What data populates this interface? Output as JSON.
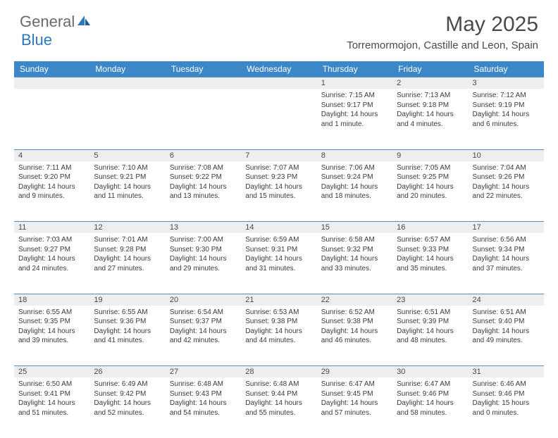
{
  "brand": {
    "part1": "General",
    "part2": "Blue"
  },
  "title": "May 2025",
  "location": "Torremormojon, Castille and Leon, Spain",
  "header_bg": "#3b87c8",
  "header_text": "#ffffff",
  "daynum_bg": "#eeeeee",
  "border_color": "#5a8fbc",
  "weekdays": [
    "Sunday",
    "Monday",
    "Tuesday",
    "Wednesday",
    "Thursday",
    "Friday",
    "Saturday"
  ],
  "weeks": [
    {
      "nums": [
        "",
        "",
        "",
        "",
        "1",
        "2",
        "3"
      ],
      "cells": [
        null,
        null,
        null,
        null,
        {
          "sr": "Sunrise: 7:15 AM",
          "ss": "Sunset: 9:17 PM",
          "d1": "Daylight: 14 hours",
          "d2": "and 1 minute."
        },
        {
          "sr": "Sunrise: 7:13 AM",
          "ss": "Sunset: 9:18 PM",
          "d1": "Daylight: 14 hours",
          "d2": "and 4 minutes."
        },
        {
          "sr": "Sunrise: 7:12 AM",
          "ss": "Sunset: 9:19 PM",
          "d1": "Daylight: 14 hours",
          "d2": "and 6 minutes."
        }
      ]
    },
    {
      "nums": [
        "4",
        "5",
        "6",
        "7",
        "8",
        "9",
        "10"
      ],
      "cells": [
        {
          "sr": "Sunrise: 7:11 AM",
          "ss": "Sunset: 9:20 PM",
          "d1": "Daylight: 14 hours",
          "d2": "and 9 minutes."
        },
        {
          "sr": "Sunrise: 7:10 AM",
          "ss": "Sunset: 9:21 PM",
          "d1": "Daylight: 14 hours",
          "d2": "and 11 minutes."
        },
        {
          "sr": "Sunrise: 7:08 AM",
          "ss": "Sunset: 9:22 PM",
          "d1": "Daylight: 14 hours",
          "d2": "and 13 minutes."
        },
        {
          "sr": "Sunrise: 7:07 AM",
          "ss": "Sunset: 9:23 PM",
          "d1": "Daylight: 14 hours",
          "d2": "and 15 minutes."
        },
        {
          "sr": "Sunrise: 7:06 AM",
          "ss": "Sunset: 9:24 PM",
          "d1": "Daylight: 14 hours",
          "d2": "and 18 minutes."
        },
        {
          "sr": "Sunrise: 7:05 AM",
          "ss": "Sunset: 9:25 PM",
          "d1": "Daylight: 14 hours",
          "d2": "and 20 minutes."
        },
        {
          "sr": "Sunrise: 7:04 AM",
          "ss": "Sunset: 9:26 PM",
          "d1": "Daylight: 14 hours",
          "d2": "and 22 minutes."
        }
      ]
    },
    {
      "nums": [
        "11",
        "12",
        "13",
        "14",
        "15",
        "16",
        "17"
      ],
      "cells": [
        {
          "sr": "Sunrise: 7:03 AM",
          "ss": "Sunset: 9:27 PM",
          "d1": "Daylight: 14 hours",
          "d2": "and 24 minutes."
        },
        {
          "sr": "Sunrise: 7:01 AM",
          "ss": "Sunset: 9:28 PM",
          "d1": "Daylight: 14 hours",
          "d2": "and 27 minutes."
        },
        {
          "sr": "Sunrise: 7:00 AM",
          "ss": "Sunset: 9:30 PM",
          "d1": "Daylight: 14 hours",
          "d2": "and 29 minutes."
        },
        {
          "sr": "Sunrise: 6:59 AM",
          "ss": "Sunset: 9:31 PM",
          "d1": "Daylight: 14 hours",
          "d2": "and 31 minutes."
        },
        {
          "sr": "Sunrise: 6:58 AM",
          "ss": "Sunset: 9:32 PM",
          "d1": "Daylight: 14 hours",
          "d2": "and 33 minutes."
        },
        {
          "sr": "Sunrise: 6:57 AM",
          "ss": "Sunset: 9:33 PM",
          "d1": "Daylight: 14 hours",
          "d2": "and 35 minutes."
        },
        {
          "sr": "Sunrise: 6:56 AM",
          "ss": "Sunset: 9:34 PM",
          "d1": "Daylight: 14 hours",
          "d2": "and 37 minutes."
        }
      ]
    },
    {
      "nums": [
        "18",
        "19",
        "20",
        "21",
        "22",
        "23",
        "24"
      ],
      "cells": [
        {
          "sr": "Sunrise: 6:55 AM",
          "ss": "Sunset: 9:35 PM",
          "d1": "Daylight: 14 hours",
          "d2": "and 39 minutes."
        },
        {
          "sr": "Sunrise: 6:55 AM",
          "ss": "Sunset: 9:36 PM",
          "d1": "Daylight: 14 hours",
          "d2": "and 41 minutes."
        },
        {
          "sr": "Sunrise: 6:54 AM",
          "ss": "Sunset: 9:37 PM",
          "d1": "Daylight: 14 hours",
          "d2": "and 42 minutes."
        },
        {
          "sr": "Sunrise: 6:53 AM",
          "ss": "Sunset: 9:38 PM",
          "d1": "Daylight: 14 hours",
          "d2": "and 44 minutes."
        },
        {
          "sr": "Sunrise: 6:52 AM",
          "ss": "Sunset: 9:38 PM",
          "d1": "Daylight: 14 hours",
          "d2": "and 46 minutes."
        },
        {
          "sr": "Sunrise: 6:51 AM",
          "ss": "Sunset: 9:39 PM",
          "d1": "Daylight: 14 hours",
          "d2": "and 48 minutes."
        },
        {
          "sr": "Sunrise: 6:51 AM",
          "ss": "Sunset: 9:40 PM",
          "d1": "Daylight: 14 hours",
          "d2": "and 49 minutes."
        }
      ]
    },
    {
      "nums": [
        "25",
        "26",
        "27",
        "28",
        "29",
        "30",
        "31"
      ],
      "cells": [
        {
          "sr": "Sunrise: 6:50 AM",
          "ss": "Sunset: 9:41 PM",
          "d1": "Daylight: 14 hours",
          "d2": "and 51 minutes."
        },
        {
          "sr": "Sunrise: 6:49 AM",
          "ss": "Sunset: 9:42 PM",
          "d1": "Daylight: 14 hours",
          "d2": "and 52 minutes."
        },
        {
          "sr": "Sunrise: 6:48 AM",
          "ss": "Sunset: 9:43 PM",
          "d1": "Daylight: 14 hours",
          "d2": "and 54 minutes."
        },
        {
          "sr": "Sunrise: 6:48 AM",
          "ss": "Sunset: 9:44 PM",
          "d1": "Daylight: 14 hours",
          "d2": "and 55 minutes."
        },
        {
          "sr": "Sunrise: 6:47 AM",
          "ss": "Sunset: 9:45 PM",
          "d1": "Daylight: 14 hours",
          "d2": "and 57 minutes."
        },
        {
          "sr": "Sunrise: 6:47 AM",
          "ss": "Sunset: 9:46 PM",
          "d1": "Daylight: 14 hours",
          "d2": "and 58 minutes."
        },
        {
          "sr": "Sunrise: 6:46 AM",
          "ss": "Sunset: 9:46 PM",
          "d1": "Daylight: 15 hours",
          "d2": "and 0 minutes."
        }
      ]
    }
  ]
}
